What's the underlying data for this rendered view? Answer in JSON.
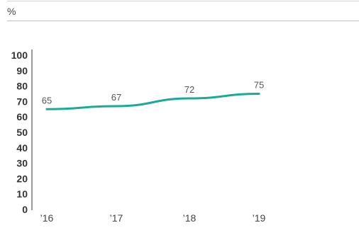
{
  "chart_data": {
    "type": "line",
    "unit_label": "%",
    "categories": [
      "’16",
      "’17",
      "’18",
      "’19"
    ],
    "series": [
      {
        "values": [
          65,
          67,
          72,
          75
        ],
        "color": "#1aab98"
      }
    ],
    "data_labels": [
      "65",
      "67",
      "72",
      "75"
    ],
    "yticks": [
      0,
      10,
      20,
      30,
      40,
      50,
      60,
      70,
      80,
      90,
      100
    ],
    "ylim": [
      0,
      100
    ],
    "grid": false,
    "title": "",
    "xlabel": "",
    "ylabel": ""
  }
}
